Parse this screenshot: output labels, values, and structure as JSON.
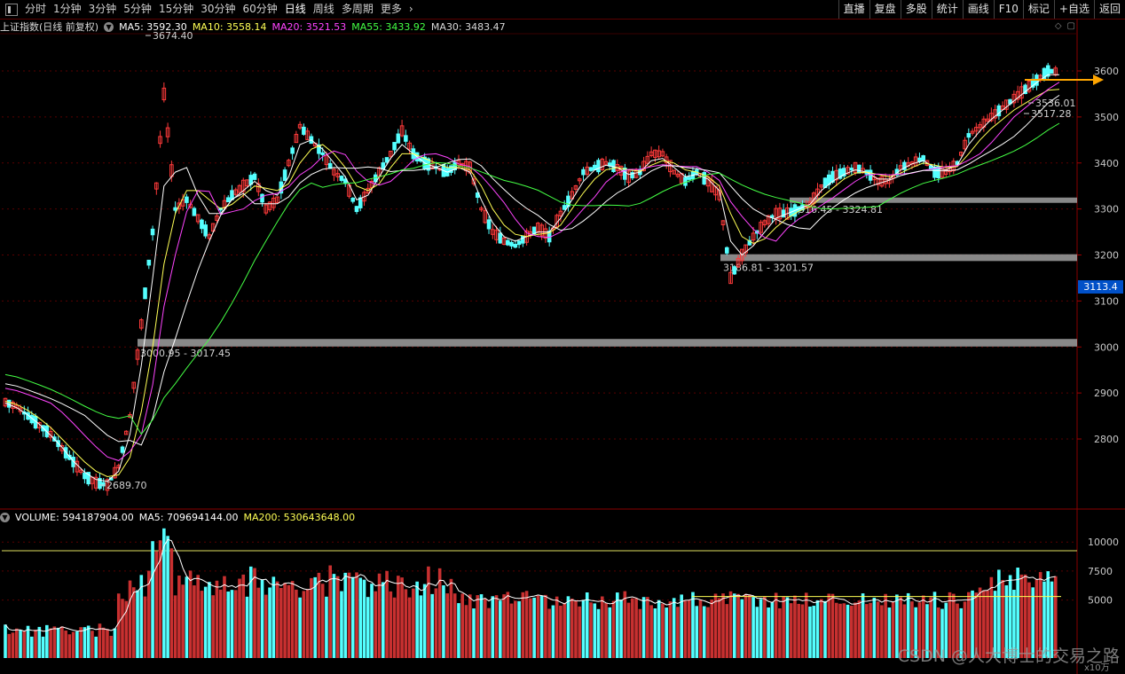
{
  "toolbar": {
    "periods": [
      "分时",
      "1分钟",
      "3分钟",
      "5分钟",
      "15分钟",
      "30分钟",
      "60分钟",
      "日线",
      "周线",
      "多周期",
      "更多"
    ],
    "active_period": "日线",
    "right_buttons": [
      "直播",
      "复盘",
      "多股",
      "统计",
      "画线",
      "F10",
      "标记",
      "+自选",
      "返回"
    ]
  },
  "main_legend": {
    "title": "上证指数(日线 前复权)",
    "ma5": "MA5: 3592.30",
    "ma10": "MA10: 3558.14",
    "ma20": "MA20: 3521.53",
    "ma55": "MA55: 3433.92",
    "ma30": "MA30: 3483.47"
  },
  "volume_legend": {
    "volume": "VOLUME: 594187904.00",
    "ma5": "MA5: 709694144.00",
    "ma200": "MA200: 530643648.00"
  },
  "current_price_tag": "3113.4",
  "watermark": "CSDN @人大博士的交易之路",
  "volume_unit": "x10万",
  "colors": {
    "up": "#ff3a3a",
    "down": "#54ffff",
    "ma5": "#ffffff",
    "ma10": "#ffff55",
    "ma20": "#ff44ff",
    "ma55": "#44ff44",
    "ma30": "#ffffff",
    "zone": "#a0a0a0",
    "arrow": "#ffa500"
  },
  "chart_data": [
    {
      "type": "candlestick",
      "y_ticks": [
        2800,
        2900,
        3000,
        3100,
        3200,
        3300,
        3400,
        3500,
        3600
      ],
      "ylim": [
        2680,
        3680
      ],
      "annotations": [
        {
          "text": "3674.40",
          "price": 3674.4
        },
        {
          "text": "2689.70",
          "price": 2689.7
        },
        {
          "text": "3536.01",
          "price": 3536.01
        },
        {
          "text": "3517.28",
          "price": 3517.28
        }
      ],
      "support_zones": [
        {
          "label": "3000.95 - 3017.45",
          "low": 3000.95,
          "high": 3017.45
        },
        {
          "label": "3186.81 - 3201.57",
          "low": 3186.81,
          "high": 3201.57
        },
        {
          "label": "3316.45 - 3324.81",
          "low": 3316.45,
          "high": 3324.81
        }
      ],
      "close_path": [
        2880,
        2870,
        2850,
        2830,
        2810,
        2780,
        2750,
        2720,
        2705,
        2700,
        2740,
        2850,
        3050,
        3250,
        3550,
        3300,
        3320,
        3280,
        3240,
        3300,
        3330,
        3350,
        3370,
        3300,
        3320,
        3400,
        3480,
        3450,
        3420,
        3380,
        3360,
        3300,
        3340,
        3380,
        3420,
        3470,
        3420,
        3400,
        3390,
        3380,
        3400,
        3390,
        3300,
        3250,
        3230,
        3220,
        3240,
        3260,
        3240,
        3290,
        3330,
        3380,
        3390,
        3400,
        3390,
        3370,
        3380,
        3420,
        3420,
        3380,
        3360,
        3380,
        3360,
        3330,
        3150,
        3200,
        3240,
        3270,
        3290,
        3290,
        3300,
        3310,
        3350,
        3370,
        3380,
        3390,
        3380,
        3360,
        3360,
        3390,
        3400,
        3410,
        3380,
        3380,
        3400,
        3460,
        3480,
        3500,
        3520,
        3540,
        3560,
        3580,
        3600,
        3598
      ],
      "series": [
        {
          "name": "MA5",
          "values": [
            2878,
            2868,
            2852,
            2832,
            2808,
            2782,
            2752,
            2728,
            2712,
            2708,
            2730,
            2810,
            2960,
            3150,
            3350,
            3380,
            3390,
            3330,
            3290,
            3290,
            3320,
            3340,
            3360,
            3340,
            3330,
            3370,
            3440,
            3450,
            3430,
            3400,
            3370,
            3320,
            3330,
            3370,
            3410,
            3440,
            3420,
            3400,
            3390,
            3380,
            3390,
            3380,
            3320,
            3270,
            3240,
            3230,
            3240,
            3250,
            3250,
            3280,
            3320,
            3360,
            3385,
            3395,
            3390,
            3375,
            3380,
            3405,
            3410,
            3390,
            3370,
            3375,
            3365,
            3340,
            3230,
            3200,
            3220,
            3250,
            3280,
            3290,
            3300,
            3310,
            3340,
            3360,
            3375,
            3385,
            3380,
            3365,
            3365,
            3385,
            3398,
            3405,
            3390,
            3385,
            3395,
            3440,
            3470,
            3495,
            3515,
            3535,
            3555,
            3575,
            3592,
            3592
          ]
        },
        {
          "name": "MA10",
          "values": [
            2882,
            2875,
            2862,
            2845,
            2825,
            2800,
            2775,
            2750,
            2730,
            2718,
            2722,
            2760,
            2860,
            3000,
            3180,
            3290,
            3340,
            3340,
            3320,
            3300,
            3310,
            3330,
            3350,
            3345,
            3340,
            3355,
            3400,
            3430,
            3440,
            3420,
            3390,
            3350,
            3340,
            3355,
            3390,
            3420,
            3420,
            3410,
            3400,
            3390,
            3390,
            3385,
            3350,
            3300,
            3265,
            3245,
            3240,
            3245,
            3248,
            3265,
            3300,
            3335,
            3365,
            3385,
            3390,
            3385,
            3382,
            3395,
            3405,
            3400,
            3385,
            3380,
            3370,
            3350,
            3290,
            3240,
            3225,
            3235,
            3260,
            3280,
            3295,
            3305,
            3325,
            3345,
            3365,
            3378,
            3380,
            3375,
            3370,
            3378,
            3390,
            3400,
            3395,
            3390,
            3392,
            3420,
            3450,
            3475,
            3495,
            3515,
            3530,
            3545,
            3558,
            3560
          ]
        }
      ]
    },
    {
      "type": "bar",
      "name": "VOLUME",
      "y_ticks": [
        5000,
        7500,
        10000
      ],
      "ylim": [
        0,
        12500
      ],
      "ma200_level": 5306
    }
  ]
}
